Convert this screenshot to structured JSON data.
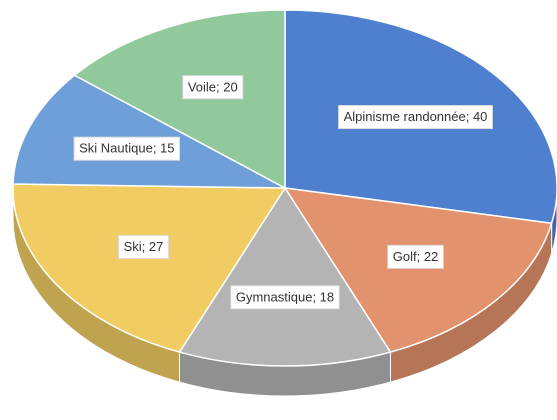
{
  "chart_data": {
    "type": "pie",
    "categories": [
      "Alpinisme randonnée",
      "Golf",
      "Gymnastique",
      "Ski",
      "Ski Nautique",
      "Voile"
    ],
    "values": [
      40,
      22,
      18,
      27,
      15,
      20
    ],
    "colors": [
      "#4f7fcf",
      "#e2926c",
      "#b4b4b4",
      "#f0cc62",
      "#6e9fd8",
      "#92c99c"
    ],
    "label_separator": "; "
  }
}
